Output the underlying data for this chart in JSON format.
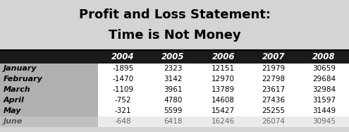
{
  "title_line1": "Profit and Loss Statement:",
  "title_line2": "Time is Not Money",
  "title_bg": "#d4d4d4",
  "header_bg": "#1a1a1a",
  "header_text_color": "#ffffff",
  "row_label_bg": "#b0b0b0",
  "data_bg_white": "#ffffff",
  "years": [
    "2004",
    "2005",
    "2006",
    "2007",
    "2008"
  ],
  "months": [
    "January",
    "February",
    "March",
    "April",
    "May",
    "June"
  ],
  "values": [
    [
      -1895,
      2323,
      12151,
      21979,
      30659
    ],
    [
      -1470,
      3142,
      12970,
      22798,
      29684
    ],
    [
      -1109,
      3961,
      13789,
      23617,
      32984
    ],
    [
      -752,
      4780,
      14608,
      27436,
      31597
    ],
    [
      -321,
      5599,
      15427,
      25255,
      31449
    ],
    [
      -648,
      6418,
      16246,
      26074,
      30945
    ]
  ],
  "fig_width": 4.95,
  "fig_height": 1.87,
  "dpi": 100
}
